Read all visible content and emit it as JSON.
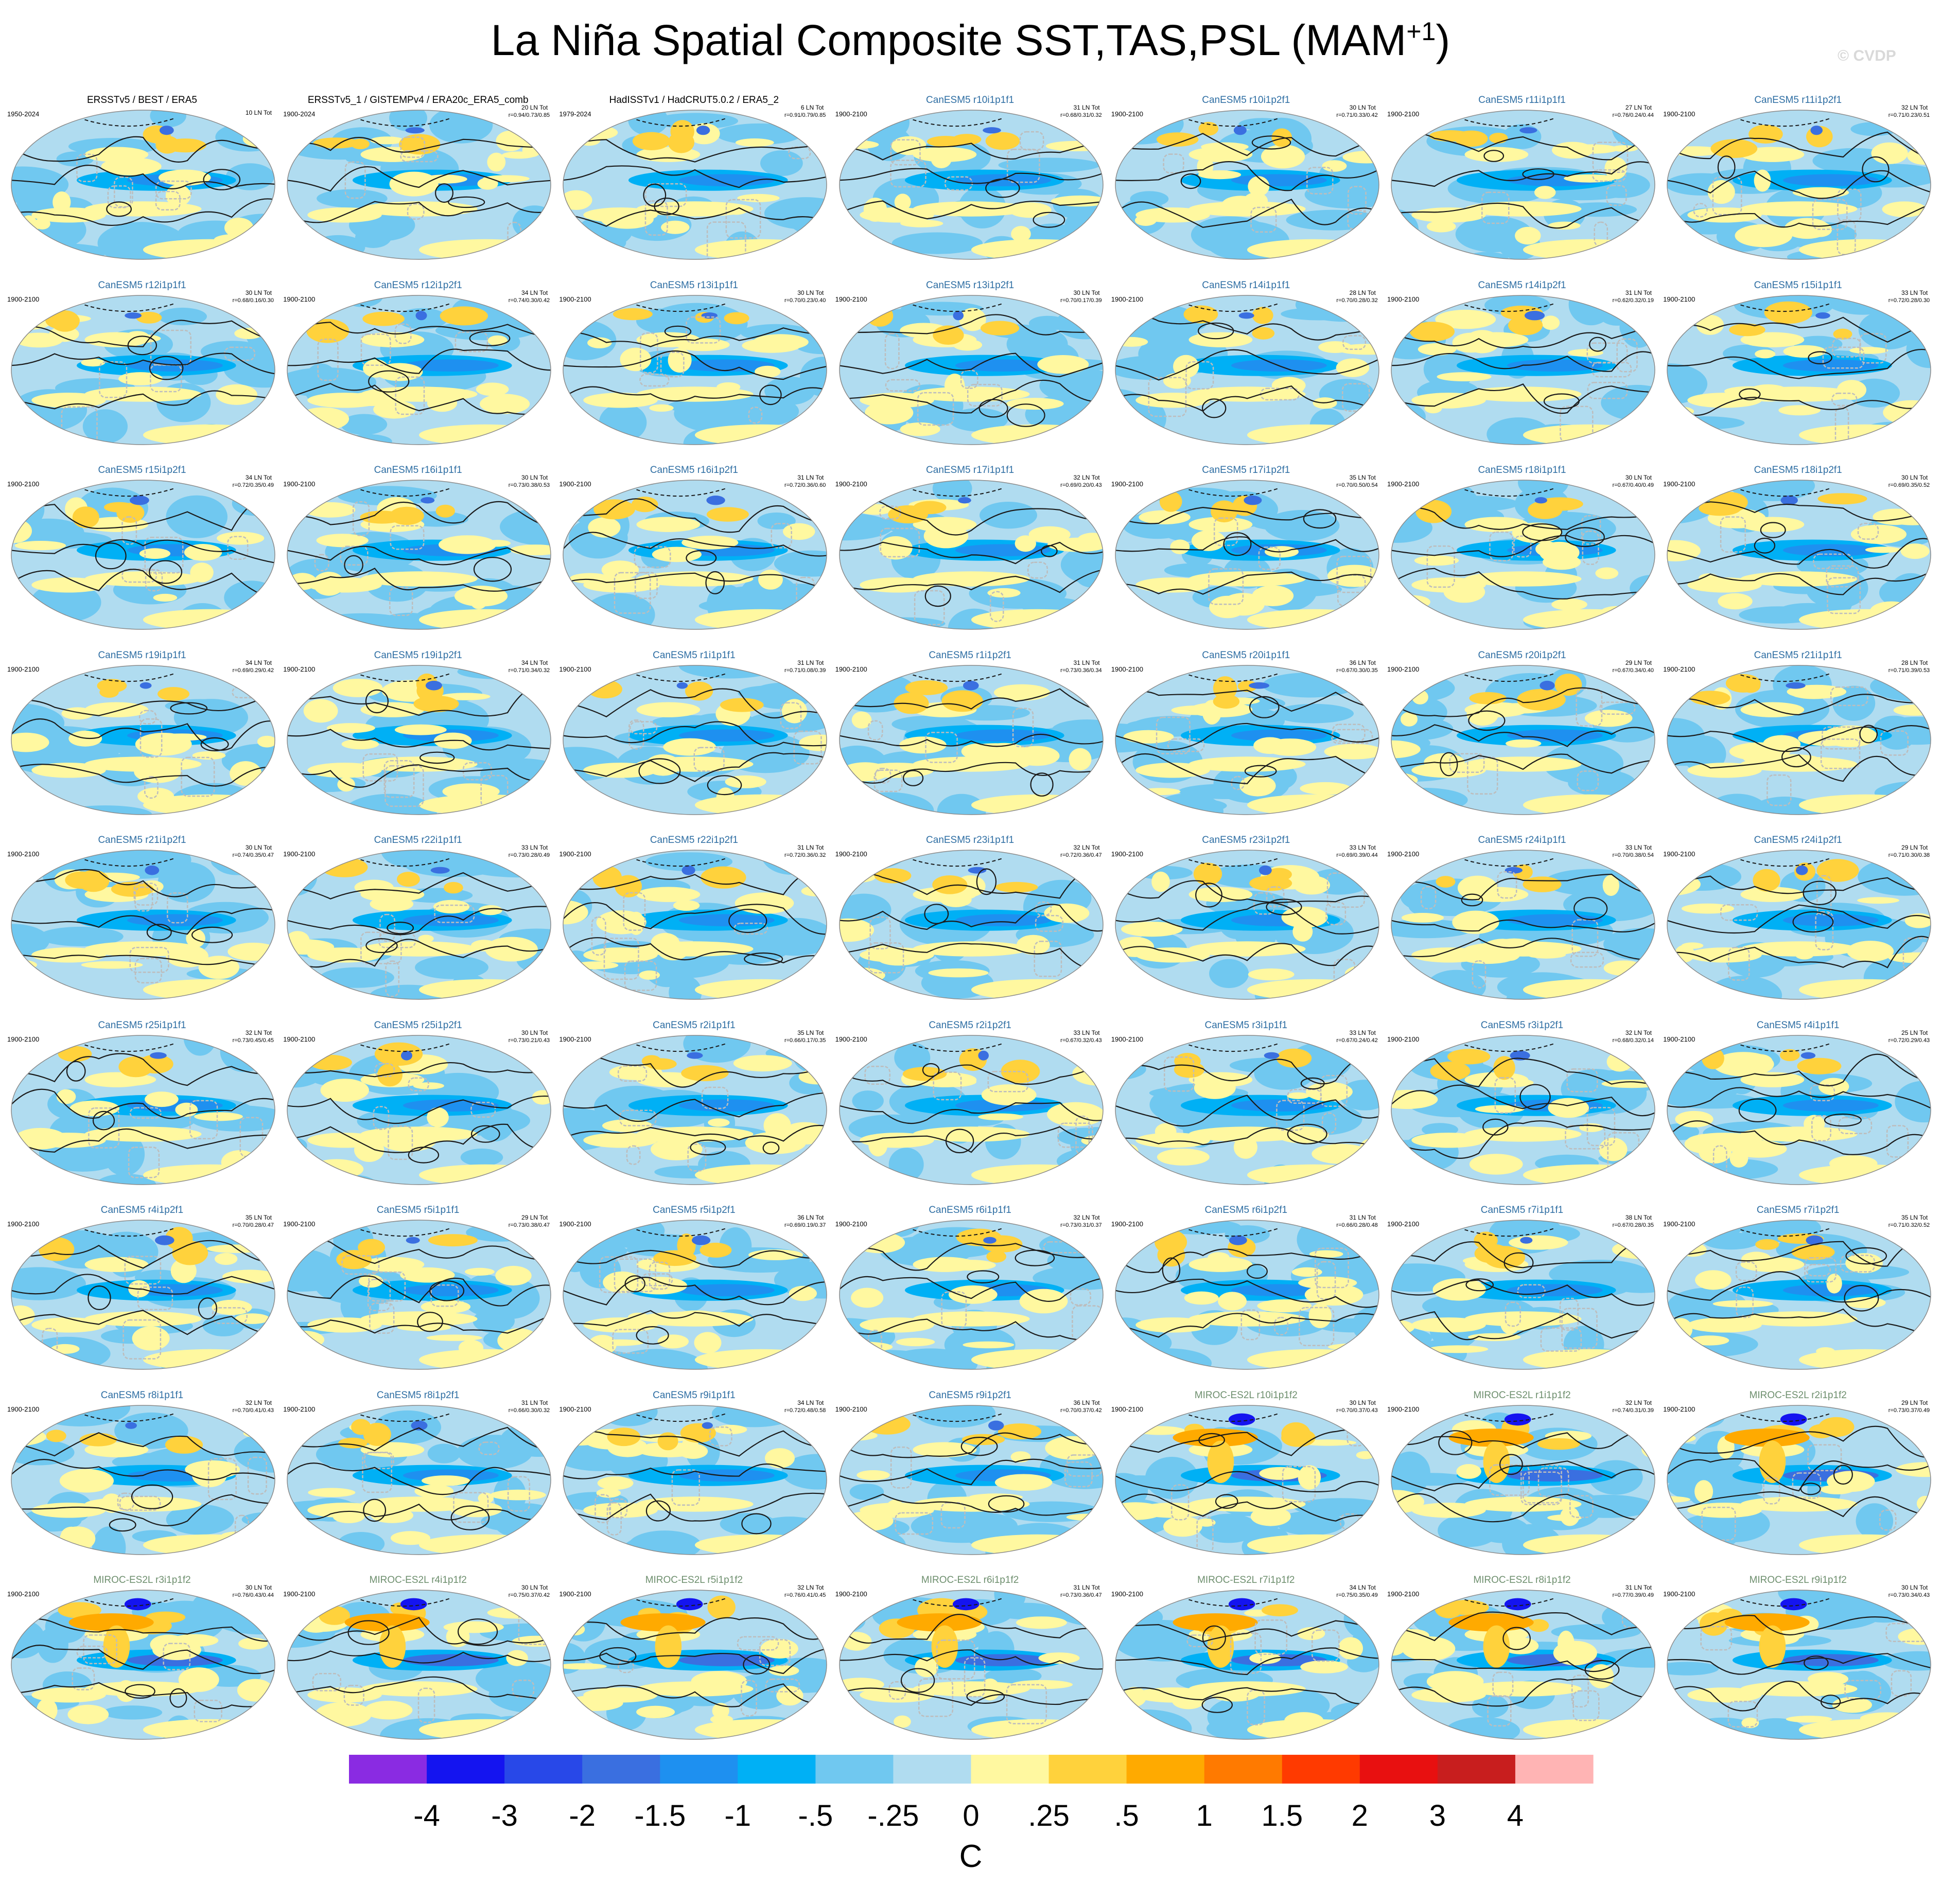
{
  "title": {
    "main": "La Niña Spatial Composite SST,TAS,PSL (MAM",
    "superscript": "+1",
    "close": ")"
  },
  "watermark": "© CVDP",
  "colors": {
    "obs_title": "#000000",
    "canesm_title": "#2e6ea3",
    "miroc_title": "#6e8f6e",
    "land_contour": "#bdbdbd",
    "psl_contour": "#1a1a1a"
  },
  "chart_data": {
    "type": "heatmap",
    "units": "C",
    "colorbar": {
      "colors": [
        "#8a2be2",
        "#1414f0",
        "#2848e8",
        "#3a6fe0",
        "#1e90f0",
        "#00b0f5",
        "#70c8f0",
        "#b0dcf0",
        "#fff8a0",
        "#ffd23c",
        "#ffaa00",
        "#ff7a00",
        "#ff3a00",
        "#e81010",
        "#c81e1e",
        "#ffb4b4"
      ],
      "tick_labels": [
        "-4",
        "-3",
        "-2",
        "-1.5",
        "-1",
        "-.5",
        "-.25",
        "0",
        ".25",
        ".5",
        "1",
        "1.5",
        "2",
        "3",
        "4"
      ],
      "label": "C"
    },
    "panels": [
      {
        "title": "ERSSTv5 / BEST / ERA5",
        "period": "1950-2024",
        "count": "10 LN Tot",
        "stats": "",
        "group": "obs"
      },
      {
        "title": "ERSSTv5_1 / GISTEMPv4 / ERA20c_ERA5_comb",
        "period": "1900-2024",
        "count": "20 LN Tot",
        "stats": "r=0.94/0.73/0.85",
        "group": "obs"
      },
      {
        "title": "HadISSTv1 / HadCRUT5.0.2 / ERA5_2",
        "period": "1979-2024",
        "count": "6 LN Tot",
        "stats": "r=0.91/0.79/0.85",
        "group": "obs"
      },
      {
        "title": "CanESM5 r10i1p1f1",
        "period": "1900-2100",
        "count": "31 LN Tot",
        "stats": "r=0.68/0.31/0.32",
        "group": "canesm"
      },
      {
        "title": "CanESM5 r10i1p2f1",
        "period": "1900-2100",
        "count": "30 LN Tot",
        "stats": "r=0.71/0.33/0.42",
        "group": "canesm"
      },
      {
        "title": "CanESM5 r11i1p1f1",
        "period": "1900-2100",
        "count": "27 LN Tot",
        "stats": "r=0.76/0.24/0.44",
        "group": "canesm"
      },
      {
        "title": "CanESM5 r11i1p2f1",
        "period": "1900-2100",
        "count": "32 LN Tot",
        "stats": "r=0.71/0.23/0.51",
        "group": "canesm"
      },
      {
        "title": "CanESM5 r12i1p1f1",
        "period": "1900-2100",
        "count": "30 LN Tot",
        "stats": "r=0.68/0.16/0.30",
        "group": "canesm"
      },
      {
        "title": "CanESM5 r12i1p2f1",
        "period": "1900-2100",
        "count": "34 LN Tot",
        "stats": "r=0.74/0.30/0.42",
        "group": "canesm"
      },
      {
        "title": "CanESM5 r13i1p1f1",
        "period": "1900-2100",
        "count": "30 LN Tot",
        "stats": "r=0.70/0.23/0.40",
        "group": "canesm"
      },
      {
        "title": "CanESM5 r13i1p2f1",
        "period": "1900-2100",
        "count": "30 LN Tot",
        "stats": "r=0.70/0.17/0.39",
        "group": "canesm"
      },
      {
        "title": "CanESM5 r14i1p1f1",
        "period": "1900-2100",
        "count": "28 LN Tot",
        "stats": "r=0.70/0.28/0.32",
        "group": "canesm"
      },
      {
        "title": "CanESM5 r14i1p2f1",
        "period": "1900-2100",
        "count": "31 LN Tot",
        "stats": "r=0.62/0.32/0.19",
        "group": "canesm"
      },
      {
        "title": "CanESM5 r15i1p1f1",
        "period": "1900-2100",
        "count": "33 LN Tot",
        "stats": "r=0.72/0.28/0.30",
        "group": "canesm"
      },
      {
        "title": "CanESM5 r15i1p2f1",
        "period": "1900-2100",
        "count": "34 LN Tot",
        "stats": "r=0.72/0.35/0.49",
        "group": "canesm"
      },
      {
        "title": "CanESM5 r16i1p1f1",
        "period": "1900-2100",
        "count": "30 LN Tot",
        "stats": "r=0.73/0.38/0.53",
        "group": "canesm"
      },
      {
        "title": "CanESM5 r16i1p2f1",
        "period": "1900-2100",
        "count": "31 LN Tot",
        "stats": "r=0.72/0.36/0.60",
        "group": "canesm"
      },
      {
        "title": "CanESM5 r17i1p1f1",
        "period": "1900-2100",
        "count": "32 LN Tot",
        "stats": "r=0.69/0.20/0.43",
        "group": "canesm"
      },
      {
        "title": "CanESM5 r17i1p2f1",
        "period": "1900-2100",
        "count": "35 LN Tot",
        "stats": "r=0.70/0.50/0.54",
        "group": "canesm"
      },
      {
        "title": "CanESM5 r18i1p1f1",
        "period": "1900-2100",
        "count": "30 LN Tot",
        "stats": "r=0.67/0.40/0.49",
        "group": "canesm"
      },
      {
        "title": "CanESM5 r18i1p2f1",
        "period": "1900-2100",
        "count": "30 LN Tot",
        "stats": "r=0.69/0.35/0.52",
        "group": "canesm"
      },
      {
        "title": "CanESM5 r19i1p1f1",
        "period": "1900-2100",
        "count": "34 LN Tot",
        "stats": "r=0.69/0.29/0.42",
        "group": "canesm"
      },
      {
        "title": "CanESM5 r19i1p2f1",
        "period": "1900-2100",
        "count": "34 LN Tot",
        "stats": "r=0.71/0.34/0.32",
        "group": "canesm"
      },
      {
        "title": "CanESM5 r1i1p1f1",
        "period": "1900-2100",
        "count": "31 LN Tot",
        "stats": "r=0.71/0.08/0.39",
        "group": "canesm"
      },
      {
        "title": "CanESM5 r1i1p2f1",
        "period": "1900-2100",
        "count": "31 LN Tot",
        "stats": "r=0.73/0.36/0.34",
        "group": "canesm"
      },
      {
        "title": "CanESM5 r20i1p1f1",
        "period": "1900-2100",
        "count": "36 LN Tot",
        "stats": "r=0.67/0.30/0.35",
        "group": "canesm"
      },
      {
        "title": "CanESM5 r20i1p2f1",
        "period": "1900-2100",
        "count": "29 LN Tot",
        "stats": "r=0.67/0.34/0.40",
        "group": "canesm"
      },
      {
        "title": "CanESM5 r21i1p1f1",
        "period": "1900-2100",
        "count": "28 LN Tot",
        "stats": "r=0.71/0.39/0.53",
        "group": "canesm"
      },
      {
        "title": "CanESM5 r21i1p2f1",
        "period": "1900-2100",
        "count": "30 LN Tot",
        "stats": "r=0.74/0.35/0.47",
        "group": "canesm"
      },
      {
        "title": "CanESM5 r22i1p1f1",
        "period": "1900-2100",
        "count": "33 LN Tot",
        "stats": "r=0.73/0.28/0.49",
        "group": "canesm"
      },
      {
        "title": "CanESM5 r22i1p2f1",
        "period": "1900-2100",
        "count": "31 LN Tot",
        "stats": "r=0.72/0.36/0.32",
        "group": "canesm"
      },
      {
        "title": "CanESM5 r23i1p1f1",
        "period": "1900-2100",
        "count": "32 LN Tot",
        "stats": "r=0.72/0.36/0.47",
        "group": "canesm"
      },
      {
        "title": "CanESM5 r23i1p2f1",
        "period": "1900-2100",
        "count": "33 LN Tot",
        "stats": "r=0.69/0.39/0.44",
        "group": "canesm"
      },
      {
        "title": "CanESM5 r24i1p1f1",
        "period": "1900-2100",
        "count": "33 LN Tot",
        "stats": "r=0.70/0.38/0.54",
        "group": "canesm"
      },
      {
        "title": "CanESM5 r24i1p2f1",
        "period": "1900-2100",
        "count": "29 LN Tot",
        "stats": "r=0.71/0.30/0.38",
        "group": "canesm"
      },
      {
        "title": "CanESM5 r25i1p1f1",
        "period": "1900-2100",
        "count": "32 LN Tot",
        "stats": "r=0.73/0.45/0.45",
        "group": "canesm"
      },
      {
        "title": "CanESM5 r25i1p2f1",
        "period": "1900-2100",
        "count": "30 LN Tot",
        "stats": "r=0.73/0.21/0.43",
        "group": "canesm"
      },
      {
        "title": "CanESM5 r2i1p1f1",
        "period": "1900-2100",
        "count": "35 LN Tot",
        "stats": "r=0.66/0.17/0.35",
        "group": "canesm"
      },
      {
        "title": "CanESM5 r2i1p2f1",
        "period": "1900-2100",
        "count": "33 LN Tot",
        "stats": "r=0.67/0.32/0.43",
        "group": "canesm"
      },
      {
        "title": "CanESM5 r3i1p1f1",
        "period": "1900-2100",
        "count": "33 LN Tot",
        "stats": "r=0.67/0.24/0.42",
        "group": "canesm"
      },
      {
        "title": "CanESM5 r3i1p2f1",
        "period": "1900-2100",
        "count": "32 LN Tot",
        "stats": "r=0.68/0.32/0.14",
        "group": "canesm"
      },
      {
        "title": "CanESM5 r4i1p1f1",
        "period": "1900-2100",
        "count": "25 LN Tot",
        "stats": "r=0.72/0.29/0.43",
        "group": "canesm"
      },
      {
        "title": "CanESM5 r4i1p2f1",
        "period": "1900-2100",
        "count": "35 LN Tot",
        "stats": "r=0.70/0.28/0.47",
        "group": "canesm"
      },
      {
        "title": "CanESM5 r5i1p1f1",
        "period": "1900-2100",
        "count": "29 LN Tot",
        "stats": "r=0.73/0.38/0.47",
        "group": "canesm"
      },
      {
        "title": "CanESM5 r5i1p2f1",
        "period": "1900-2100",
        "count": "36 LN Tot",
        "stats": "r=0.69/0.19/0.37",
        "group": "canesm"
      },
      {
        "title": "CanESM5 r6i1p1f1",
        "period": "1900-2100",
        "count": "32 LN Tot",
        "stats": "r=0.73/0.31/0.37",
        "group": "canesm"
      },
      {
        "title": "CanESM5 r6i1p2f1",
        "period": "1900-2100",
        "count": "31 LN Tot",
        "stats": "r=0.66/0.28/0.48",
        "group": "canesm"
      },
      {
        "title": "CanESM5 r7i1p1f1",
        "period": "1900-2100",
        "count": "38 LN Tot",
        "stats": "r=0.67/0.28/0.35",
        "group": "canesm"
      },
      {
        "title": "CanESM5 r7i1p2f1",
        "period": "1900-2100",
        "count": "35 LN Tot",
        "stats": "r=0.71/0.32/0.52",
        "group": "canesm"
      },
      {
        "title": "CanESM5 r8i1p1f1",
        "period": "1900-2100",
        "count": "32 LN Tot",
        "stats": "r=0.70/0.41/0.43",
        "group": "canesm"
      },
      {
        "title": "CanESM5 r8i1p2f1",
        "period": "1900-2100",
        "count": "31 LN Tot",
        "stats": "r=0.66/0.30/0.32",
        "group": "canesm"
      },
      {
        "title": "CanESM5 r9i1p1f1",
        "period": "1900-2100",
        "count": "34 LN Tot",
        "stats": "r=0.72/0.48/0.58",
        "group": "canesm"
      },
      {
        "title": "CanESM5 r9i1p2f1",
        "period": "1900-2100",
        "count": "36 LN Tot",
        "stats": "r=0.70/0.37/0.42",
        "group": "canesm"
      },
      {
        "title": "MIROC-ES2L r10i1p1f2",
        "period": "1900-2100",
        "count": "30 LN Tot",
        "stats": "r=0.70/0.37/0.43",
        "group": "miroc"
      },
      {
        "title": "MIROC-ES2L r1i1p1f2",
        "period": "1900-2100",
        "count": "32 LN Tot",
        "stats": "r=0.74/0.31/0.39",
        "group": "miroc"
      },
      {
        "title": "MIROC-ES2L r2i1p1f2",
        "period": "1900-2100",
        "count": "29 LN Tot",
        "stats": "r=0.73/0.37/0.49",
        "group": "miroc"
      },
      {
        "title": "MIROC-ES2L r3i1p1f2",
        "period": "1900-2100",
        "count": "30 LN Tot",
        "stats": "r=0.76/0.43/0.44",
        "group": "miroc"
      },
      {
        "title": "MIROC-ES2L r4i1p1f2",
        "period": "1900-2100",
        "count": "30 LN Tot",
        "stats": "r=0.75/0.37/0.42",
        "group": "miroc"
      },
      {
        "title": "MIROC-ES2L r5i1p1f2",
        "period": "1900-2100",
        "count": "32 LN Tot",
        "stats": "r=0.76/0.41/0.45",
        "group": "miroc"
      },
      {
        "title": "MIROC-ES2L r6i1p1f2",
        "period": "1900-2100",
        "count": "31 LN Tot",
        "stats": "r=0.73/0.36/0.47",
        "group": "miroc"
      },
      {
        "title": "MIROC-ES2L r7i1p1f2",
        "period": "1900-2100",
        "count": "34 LN Tot",
        "stats": "r=0.75/0.35/0.49",
        "group": "miroc"
      },
      {
        "title": "MIROC-ES2L r8i1p1f2",
        "period": "1900-2100",
        "count": "31 LN Tot",
        "stats": "r=0.77/0.39/0.49",
        "group": "miroc"
      },
      {
        "title": "MIROC-ES2L r9i1p1f2",
        "period": "1900-2100",
        "count": "30 LN Tot",
        "stats": "r=0.73/0.34/0.43",
        "group": "miroc"
      }
    ]
  }
}
